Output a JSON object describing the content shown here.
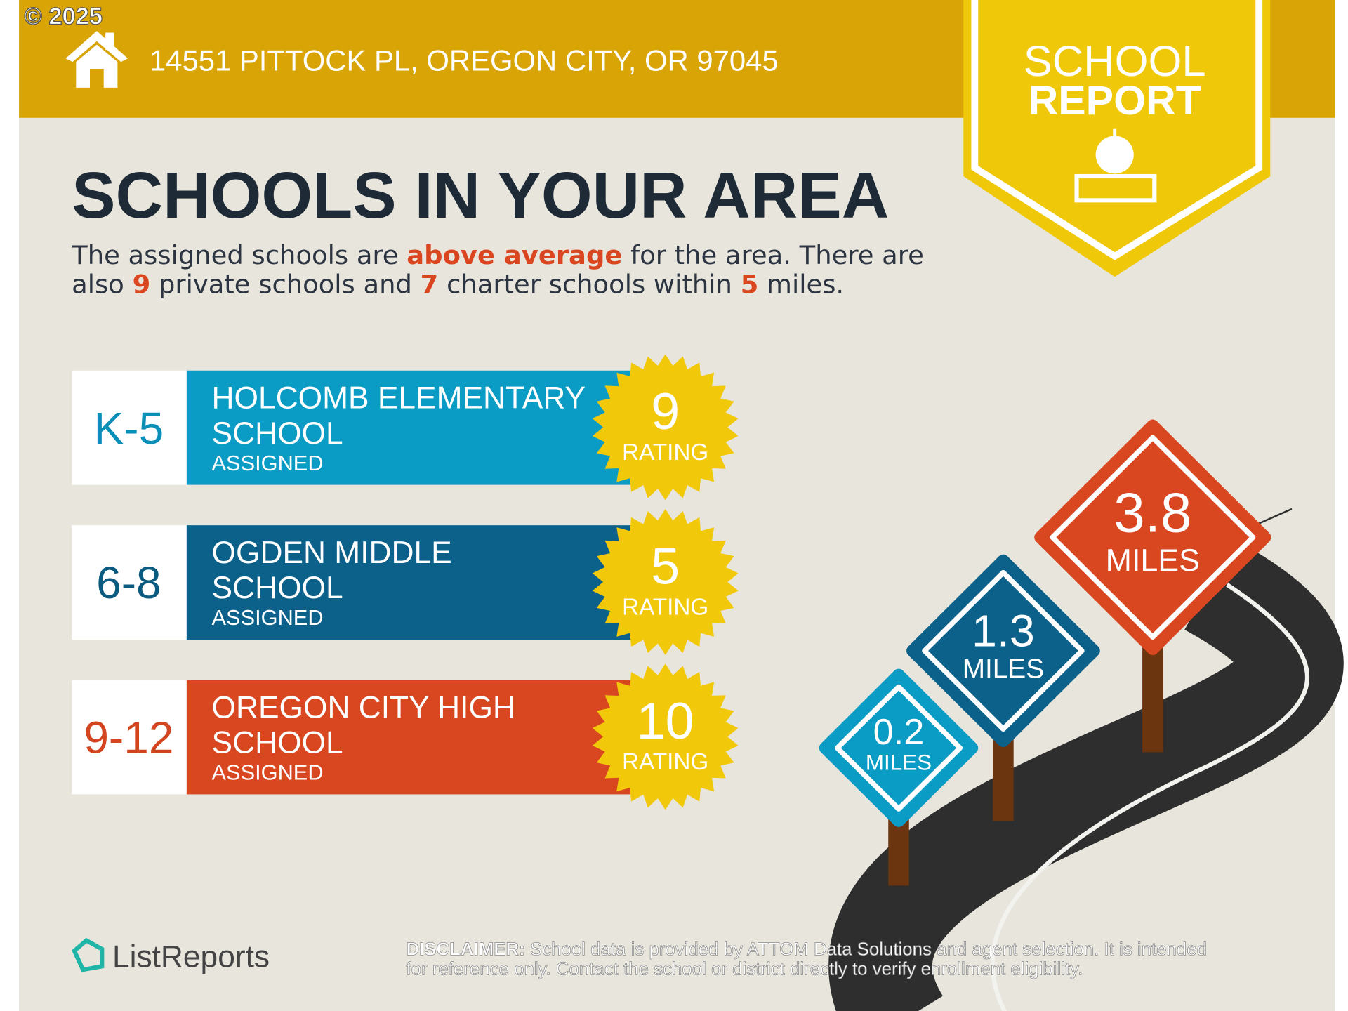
{
  "watermark": "© 2025",
  "header": {
    "address": "14551 PITTOCK PL, OREGON CITY, OR 97045"
  },
  "badge": {
    "line1": "SCHOOL",
    "line2": "REPORT"
  },
  "title": "SCHOOLS IN YOUR AREA",
  "summary": {
    "line1": [
      "The assigned schools are ",
      "above average",
      " for the area. There are"
    ],
    "line2": [
      "also ",
      9,
      " private schools and ",
      7,
      " charter schools within ",
      5,
      " miles."
    ]
  },
  "schools": [
    {
      "grades": "K-5",
      "name_lines": [
        "HOLCOMB ELEMENTARY",
        "SCHOOL"
      ],
      "status": "ASSIGNED",
      "rating": 9,
      "rating_label": "RATING",
      "color": "#0a9cc4",
      "grade_color": "#0a8fb8"
    },
    {
      "grades": "6-8",
      "name_lines": [
        "OGDEN MIDDLE",
        "SCHOOL"
      ],
      "status": "ASSIGNED",
      "rating": 5,
      "rating_label": "RATING",
      "color": "#0b6189",
      "grade_color": "#0b5a7f"
    },
    {
      "grades": "9-12",
      "name_lines": [
        "OREGON CITY HIGH",
        "SCHOOL"
      ],
      "status": "ASSIGNED",
      "rating": 10,
      "rating_label": "RATING",
      "color": "#d94721",
      "grade_color": "#d2451f"
    }
  ],
  "distances": [
    {
      "value": 0.2,
      "unit": "MILES",
      "color": "#0a9cc4"
    },
    {
      "value": 1.3,
      "unit": "MILES",
      "color": "#0b6189"
    },
    {
      "value": 3.8,
      "unit": "MILES",
      "color": "#d94721"
    }
  ],
  "footer": {
    "brand": "ListReports",
    "disclaimer_label": "DISCLAIMER:",
    "disclaimer_lines": [
      " School data is provided by ATTOM Data Solutions and agent selection. It is intended",
      "for reference only. Contact the school or district directly to verify enrollment eligibility."
    ]
  }
}
